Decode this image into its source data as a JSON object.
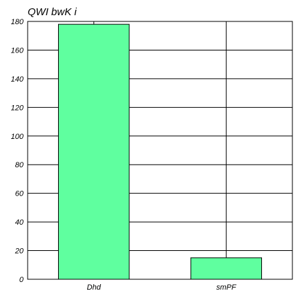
{
  "chart_data": {
    "type": "bar",
    "title": "QWI  bwK i",
    "xlabel": "",
    "ylabel": "",
    "categories": [
      "Dhd",
      "smPF"
    ],
    "values": [
      178,
      15
    ],
    "ylim": [
      0,
      180
    ],
    "yticks": [
      0,
      20,
      40,
      60,
      80,
      100,
      120,
      140,
      160,
      180
    ],
    "grid": true,
    "legend": "none"
  },
  "colors": {
    "bar_fill": "#5fff9f",
    "bar_stroke": "#000000",
    "grid": "#000000",
    "background": "#ffffff"
  }
}
